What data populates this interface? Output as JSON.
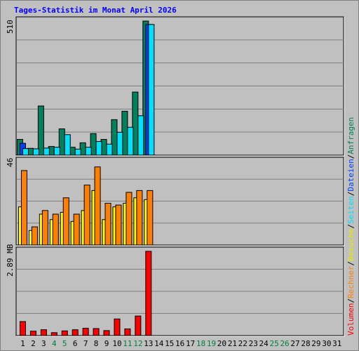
{
  "title": "Tages-Statistik im Monat April 2026",
  "colors": {
    "background": "#c0c0c0",
    "title": "#0000ff",
    "anfragen": "#00805c",
    "dateien": "#0040ff",
    "seiten": "#00e0ff",
    "besuche": "#ffff00",
    "rechner": "#ff8000",
    "volumen": "#ff0000",
    "weekend_label": "#008040"
  },
  "legend": {
    "anfragen": "Anfragen",
    "dateien": "Dateien",
    "seiten": "Seiten",
    "besuche": "Besuche",
    "rechner": "Rechner",
    "volumen": "Volumen",
    "separator": "/"
  },
  "chart_data": {
    "type": "bar",
    "title": "Tages-Statistik im Monat April 2026",
    "x": [
      "1",
      "2",
      "3",
      "4",
      "5",
      "6",
      "7",
      "8",
      "9",
      "10",
      "11",
      "12",
      "13",
      "14",
      "15",
      "16",
      "17",
      "18",
      "19",
      "20",
      "21",
      "22",
      "23",
      "24",
      "25",
      "26",
      "27",
      "28",
      "29",
      "30",
      "31"
    ],
    "weekend_days": [
      "4",
      "5",
      "11",
      "12",
      "18",
      "19",
      "25",
      "26"
    ],
    "panels": [
      {
        "id": "requests",
        "ylabel": "510",
        "ymax": 510,
        "series": [
          {
            "name": "Anfragen",
            "values": [
              60,
              26,
              187,
              33,
              100,
              30,
              47,
              82,
              60,
              135,
              167,
              240,
              510
            ]
          },
          {
            "name": "Dateien",
            "values": [
              45,
              0,
              0,
              0,
              0,
              0,
              0,
              0,
              0,
              0,
              0,
              0,
              497
            ]
          },
          {
            "name": "Seiten",
            "values": [
              25,
              24,
              27,
              30,
              78,
              23,
              30,
              52,
              42,
              87,
              106,
              150,
              497
            ]
          }
        ]
      },
      {
        "id": "visits",
        "ylabel": "46",
        "ymax": 46,
        "series": [
          {
            "name": "Besuche",
            "values": [
              21,
              8,
              17,
              14,
              18,
              13,
              19,
              30,
              14,
              21,
              23,
              26,
              25
            ]
          },
          {
            "name": "Rechner",
            "values": [
              41,
              10,
              19,
              17,
              26,
              17,
              33,
              43,
              23,
              22,
              29,
              30,
              30
            ]
          }
        ]
      },
      {
        "id": "volume",
        "ylabel": "2.89 MB",
        "ymax": 2.89,
        "series": [
          {
            "name": "Volumen",
            "values": [
              0.48,
              0.15,
              0.2,
              0.1,
              0.16,
              0.2,
              0.25,
              0.24,
              0.17,
              0.57,
              0.23,
              0.67,
              2.89
            ]
          }
        ]
      }
    ]
  }
}
